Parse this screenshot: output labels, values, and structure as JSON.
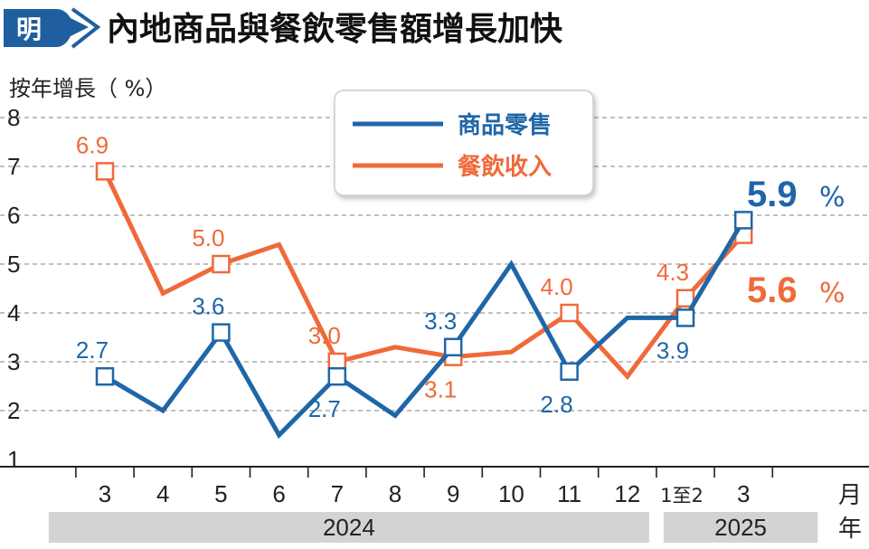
{
  "header": {
    "logo_char": "明",
    "title": "內地商品與餐飲零售額增長加快"
  },
  "colors": {
    "goods": "#1f66a8",
    "catering": "#ef6a3a",
    "logo_bg": "#1f5f9f",
    "year_band": "#d3d3d3"
  },
  "chart_data": {
    "type": "line",
    "title": "內地商品與餐飲零售額增長加快",
    "ylabel": "按年增長（ %）",
    "xlabel": "月",
    "year_axis_label": "年",
    "ylim": [
      1,
      8
    ],
    "yticks": [
      "1",
      "2",
      "3",
      "4",
      "5",
      "6",
      "7",
      "8"
    ],
    "grid": "horizontal-dashed",
    "legend_position": "top-center",
    "categories": [
      "3",
      "4",
      "5",
      "6",
      "7",
      "8",
      "9",
      "10",
      "11",
      "12",
      "1至2",
      "3"
    ],
    "year_groups": [
      {
        "label": "2024",
        "start": 0,
        "end": 9
      },
      {
        "label": "2025",
        "start": 10,
        "end": 11
      }
    ],
    "series": [
      {
        "name": "商品零售",
        "values": [
          2.7,
          2.0,
          3.6,
          1.5,
          2.7,
          1.9,
          3.3,
          5.0,
          2.8,
          3.9,
          3.9,
          5.9
        ],
        "markers": [
          0,
          2,
          4,
          6,
          8,
          10,
          11
        ],
        "labels": [
          {
            "index": 0,
            "text": "2.7",
            "pos": "above"
          },
          {
            "index": 2,
            "text": "3.6",
            "pos": "above"
          },
          {
            "index": 4,
            "text": "2.7",
            "pos": "below"
          },
          {
            "index": 6,
            "text": "3.3",
            "pos": "above"
          },
          {
            "index": 8,
            "text": "2.8",
            "pos": "below"
          },
          {
            "index": 10,
            "text": "3.9",
            "pos": "below"
          }
        ],
        "highlight": {
          "value": "5.9",
          "unit": "%"
        }
      },
      {
        "name": "餐飲收入",
        "values": [
          6.9,
          4.4,
          5.0,
          5.4,
          3.0,
          3.3,
          3.1,
          3.2,
          4.0,
          2.7,
          4.3,
          5.6
        ],
        "markers": [
          0,
          2,
          4,
          6,
          8,
          10,
          11
        ],
        "labels": [
          {
            "index": 0,
            "text": "6.9",
            "pos": "above"
          },
          {
            "index": 2,
            "text": "5.0",
            "pos": "above"
          },
          {
            "index": 4,
            "text": "3.0",
            "pos": "above"
          },
          {
            "index": 6,
            "text": "3.1",
            "pos": "below"
          },
          {
            "index": 8,
            "text": "4.0",
            "pos": "above"
          },
          {
            "index": 10,
            "text": "4.3",
            "pos": "above"
          }
        ],
        "highlight": {
          "value": "5.6",
          "unit": "%"
        }
      }
    ]
  }
}
